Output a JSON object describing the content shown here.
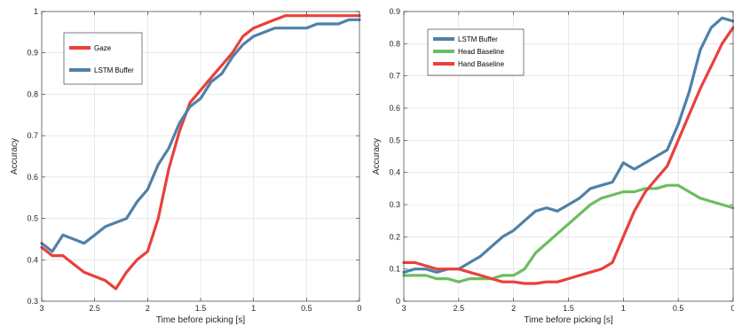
{
  "colors": {
    "red": "#e8413c",
    "blue": "#4f81a8",
    "green": "#6cbd5f",
    "grid": "#dcdcdc",
    "axis": "#262626"
  },
  "chart_data": [
    {
      "type": "line",
      "xlabel": "Time before picking [s]",
      "ylabel": "Accuracy",
      "xlim": [
        3,
        0
      ],
      "ylim": [
        0.3,
        1.0
      ],
      "x_reversed": true,
      "xticks": [
        3,
        2.5,
        2,
        1.5,
        1,
        0.5,
        0
      ],
      "xtick_labels": [
        "3",
        "2.5",
        "2",
        "1.5",
        "1",
        "0.5",
        "0"
      ],
      "yticks": [
        0.3,
        0.4,
        0.5,
        0.6,
        0.7,
        0.8,
        0.9,
        1.0
      ],
      "ytick_labels": [
        "0.3",
        "0.4",
        "0.5",
        "0.6",
        "0.7",
        "0.8",
        "0.9",
        "1"
      ],
      "grid": true,
      "legend_position": "top-left",
      "series": [
        {
          "name": "Gaze",
          "color": "#e8413c",
          "x": [
            3.0,
            2.9,
            2.8,
            2.7,
            2.6,
            2.5,
            2.4,
            2.3,
            2.2,
            2.1,
            2.0,
            1.9,
            1.8,
            1.7,
            1.6,
            1.5,
            1.4,
            1.3,
            1.2,
            1.1,
            1.0,
            0.9,
            0.8,
            0.7,
            0.6,
            0.5,
            0.4,
            0.3,
            0.2,
            0.1,
            0.0
          ],
          "y": [
            0.43,
            0.41,
            0.41,
            0.39,
            0.37,
            0.36,
            0.35,
            0.33,
            0.37,
            0.4,
            0.42,
            0.5,
            0.62,
            0.71,
            0.78,
            0.81,
            0.84,
            0.87,
            0.9,
            0.94,
            0.96,
            0.97,
            0.98,
            0.99,
            0.99,
            0.99,
            0.99,
            0.99,
            0.99,
            0.99,
            0.99
          ]
        },
        {
          "name": "LSTM Buffer",
          "color": "#4f81a8",
          "x": [
            3.0,
            2.9,
            2.8,
            2.7,
            2.6,
            2.5,
            2.4,
            2.3,
            2.2,
            2.1,
            2.0,
            1.9,
            1.8,
            1.7,
            1.6,
            1.5,
            1.4,
            1.3,
            1.2,
            1.1,
            1.0,
            0.9,
            0.8,
            0.7,
            0.6,
            0.5,
            0.4,
            0.3,
            0.2,
            0.1,
            0.0
          ],
          "y": [
            0.44,
            0.42,
            0.46,
            0.45,
            0.44,
            0.46,
            0.48,
            0.49,
            0.5,
            0.54,
            0.57,
            0.63,
            0.67,
            0.73,
            0.77,
            0.79,
            0.83,
            0.85,
            0.89,
            0.92,
            0.94,
            0.95,
            0.96,
            0.96,
            0.96,
            0.96,
            0.97,
            0.97,
            0.97,
            0.98,
            0.98
          ]
        }
      ]
    },
    {
      "type": "line",
      "xlabel": "Time before picking [s]",
      "ylabel": "Accuracy",
      "xlim": [
        3,
        0
      ],
      "ylim": [
        0,
        0.9
      ],
      "x_reversed": true,
      "xticks": [
        3,
        2.5,
        2,
        1.5,
        1,
        0.5,
        0
      ],
      "xtick_labels": [
        "3",
        "2.5",
        "2",
        "1.5",
        "1",
        "0.5",
        "0"
      ],
      "yticks": [
        0,
        0.1,
        0.2,
        0.3,
        0.4,
        0.5,
        0.6,
        0.7,
        0.8,
        0.9
      ],
      "ytick_labels": [
        "0",
        "0.1",
        "0.2",
        "0.3",
        "0.4",
        "0.5",
        "0.6",
        "0.7",
        "0.8",
        "0.9"
      ],
      "grid": true,
      "legend_position": "top-left",
      "series": [
        {
          "name": "LSTM Buffer",
          "color": "#4f81a8",
          "x": [
            3.0,
            2.9,
            2.8,
            2.7,
            2.6,
            2.5,
            2.4,
            2.3,
            2.2,
            2.1,
            2.0,
            1.9,
            1.8,
            1.7,
            1.6,
            1.5,
            1.4,
            1.3,
            1.2,
            1.1,
            1.0,
            0.9,
            0.8,
            0.7,
            0.6,
            0.5,
            0.4,
            0.3,
            0.2,
            0.1,
            0.0
          ],
          "y": [
            0.09,
            0.1,
            0.1,
            0.09,
            0.1,
            0.1,
            0.12,
            0.14,
            0.17,
            0.2,
            0.22,
            0.25,
            0.28,
            0.29,
            0.28,
            0.3,
            0.32,
            0.35,
            0.36,
            0.37,
            0.43,
            0.41,
            0.43,
            0.45,
            0.47,
            0.55,
            0.65,
            0.78,
            0.85,
            0.88,
            0.87
          ]
        },
        {
          "name": "Head Baseline",
          "color": "#6cbd5f",
          "x": [
            3.0,
            2.9,
            2.8,
            2.7,
            2.6,
            2.5,
            2.4,
            2.3,
            2.2,
            2.1,
            2.0,
            1.9,
            1.8,
            1.7,
            1.6,
            1.5,
            1.4,
            1.3,
            1.2,
            1.1,
            1.0,
            0.9,
            0.8,
            0.7,
            0.6,
            0.5,
            0.4,
            0.3,
            0.2,
            0.1,
            0.0
          ],
          "y": [
            0.08,
            0.08,
            0.08,
            0.07,
            0.07,
            0.06,
            0.07,
            0.07,
            0.07,
            0.08,
            0.08,
            0.1,
            0.15,
            0.18,
            0.21,
            0.24,
            0.27,
            0.3,
            0.32,
            0.33,
            0.34,
            0.34,
            0.35,
            0.35,
            0.36,
            0.36,
            0.34,
            0.32,
            0.31,
            0.3,
            0.29
          ]
        },
        {
          "name": "Hand Baseline",
          "color": "#e8413c",
          "x": [
            3.0,
            2.9,
            2.8,
            2.7,
            2.6,
            2.5,
            2.4,
            2.3,
            2.2,
            2.1,
            2.0,
            1.9,
            1.8,
            1.7,
            1.6,
            1.5,
            1.4,
            1.3,
            1.2,
            1.1,
            1.0,
            0.9,
            0.8,
            0.7,
            0.6,
            0.5,
            0.4,
            0.3,
            0.2,
            0.1,
            0.0
          ],
          "y": [
            0.12,
            0.12,
            0.11,
            0.1,
            0.1,
            0.1,
            0.09,
            0.08,
            0.07,
            0.06,
            0.06,
            0.055,
            0.055,
            0.06,
            0.06,
            0.07,
            0.08,
            0.09,
            0.1,
            0.12,
            0.2,
            0.28,
            0.34,
            0.38,
            0.42,
            0.5,
            0.58,
            0.66,
            0.73,
            0.8,
            0.85
          ]
        }
      ]
    }
  ]
}
